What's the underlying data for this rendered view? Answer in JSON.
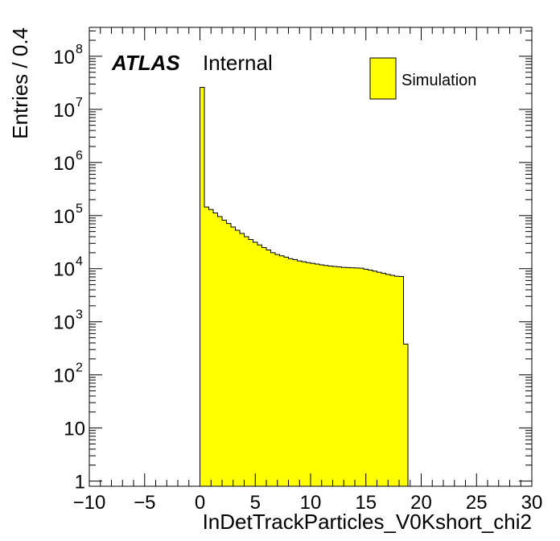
{
  "chart_data": {
    "type": "bar",
    "style": "histogram",
    "xlabel": "InDetTrackParticles_V0Kshort_chi2",
    "ylabel": "Entries / 0.4",
    "xlim": [
      -10,
      30
    ],
    "ylim": [
      0.8,
      350000000
    ],
    "yscale": "log",
    "bin_width": 0.4,
    "x_ticks": [
      -10,
      -5,
      0,
      5,
      10,
      15,
      20,
      25,
      30
    ],
    "x_tick_labels": [
      "−10",
      "−5",
      "0",
      "5",
      "10",
      "15",
      "20",
      "25",
      "30"
    ],
    "y_ticks": [
      {
        "value": 1,
        "label": "1"
      },
      {
        "value": 10,
        "label": "10"
      },
      {
        "value": 100,
        "base": "10",
        "exp": "2"
      },
      {
        "value": 1000,
        "base": "10",
        "exp": "3"
      },
      {
        "value": 10000,
        "base": "10",
        "exp": "4"
      },
      {
        "value": 100000,
        "base": "10",
        "exp": "5"
      },
      {
        "value": 1000000,
        "base": "10",
        "exp": "6"
      },
      {
        "value": 10000000,
        "base": "10",
        "exp": "7"
      },
      {
        "value": 100000000,
        "base": "10",
        "exp": "8"
      }
    ],
    "series": [
      {
        "name": "Simulation",
        "color": "#ffff00",
        "edge_color": "#000000",
        "bin_edges": [
          0,
          0.4,
          0.8,
          1.2,
          1.6,
          2.0,
          2.4,
          2.8,
          3.2,
          3.6,
          4.0,
          4.4,
          4.8,
          5.2,
          5.6,
          6.0,
          6.4,
          6.8,
          7.2,
          7.6,
          8.0,
          8.4,
          8.8,
          9.2,
          9.6,
          10.0,
          10.4,
          10.8,
          11.2,
          11.6,
          12.0,
          12.4,
          12.8,
          13.2,
          13.6,
          14.0,
          14.4,
          14.8,
          15.2,
          15.6,
          16.0,
          16.4,
          16.8,
          17.2,
          17.6,
          18.0,
          18.4,
          18.8
        ],
        "values": [
          26000000,
          145000,
          130000,
          112000,
          96000,
          82000,
          71000,
          61000,
          53000,
          46000,
          40000,
          35500,
          31500,
          28000,
          25000,
          22500,
          20000,
          18500,
          17500,
          16500,
          15500,
          14800,
          14000,
          13500,
          13000,
          12600,
          12200,
          11800,
          11500,
          11200,
          11000,
          10800,
          10600,
          10500,
          10400,
          10300,
          10200,
          9800,
          9400,
          9000,
          8600,
          8200,
          7800,
          7500,
          7200,
          7100,
          380
        ]
      }
    ],
    "legend": {
      "position": "top-right",
      "entries": [
        "Simulation"
      ]
    },
    "annotations": {
      "atlas": "ATLAS",
      "label": "Internal"
    },
    "grid": false
  }
}
